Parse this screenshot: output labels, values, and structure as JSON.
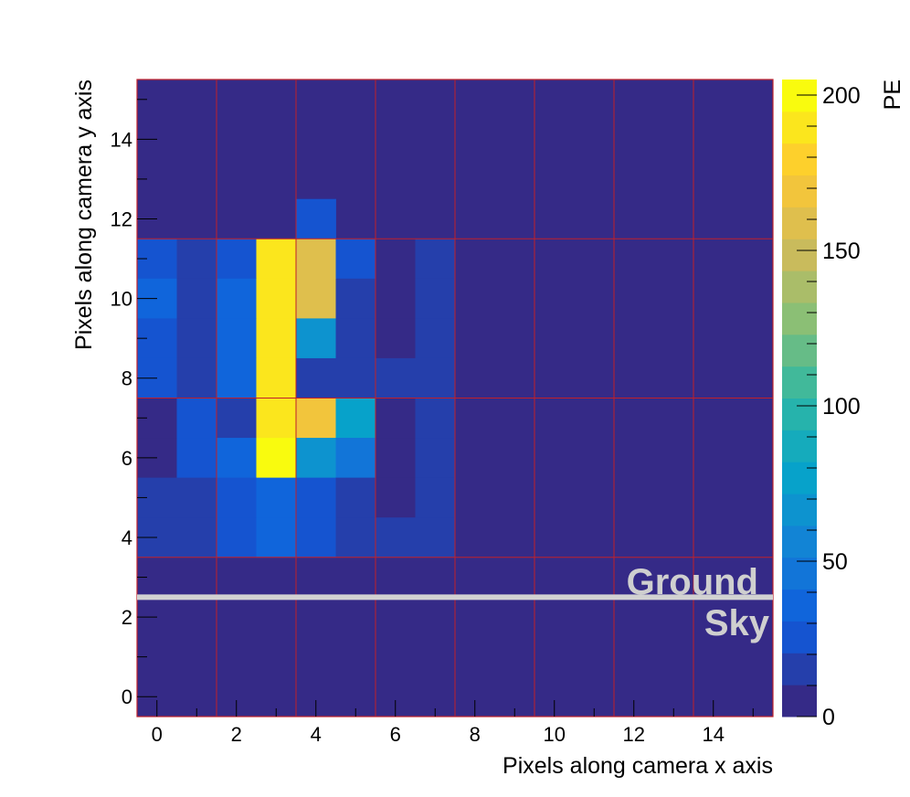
{
  "chart_data": {
    "type": "heatmap",
    "title": "",
    "xlabel": "Pixels along camera x axis",
    "ylabel": "Pixels along camera y axis",
    "colorbar_label": "PE",
    "xlim": [
      -0.5,
      15.5
    ],
    "ylim": [
      -0.5,
      15.5
    ],
    "x_ticks": [
      "0",
      "2",
      "4",
      "6",
      "8",
      "10",
      "12",
      "14"
    ],
    "y_ticks": [
      "0",
      "2",
      "4",
      "6",
      "8",
      "10",
      "12",
      "14"
    ],
    "colorbar_ticks": [
      "0",
      "50",
      "100",
      "150",
      "200"
    ],
    "zlim": [
      0,
      205
    ],
    "grid": "red module boundaries",
    "background_value": 0,
    "cells": [
      {
        "x": 4,
        "y": 12,
        "v": 25
      },
      {
        "x": 0,
        "y": 11,
        "v": 25
      },
      {
        "x": 1,
        "y": 11,
        "v": 12
      },
      {
        "x": 2,
        "y": 11,
        "v": 22
      },
      {
        "x": 3,
        "y": 11,
        "v": 190
      },
      {
        "x": 4,
        "y": 11,
        "v": 155
      },
      {
        "x": 5,
        "y": 11,
        "v": 25
      },
      {
        "x": 6,
        "y": 11,
        "v": 2
      },
      {
        "x": 7,
        "y": 11,
        "v": 15
      },
      {
        "x": 0,
        "y": 10,
        "v": 40
      },
      {
        "x": 1,
        "y": 10,
        "v": 12
      },
      {
        "x": 2,
        "y": 10,
        "v": 35
      },
      {
        "x": 3,
        "y": 10,
        "v": 190
      },
      {
        "x": 4,
        "y": 10,
        "v": 155
      },
      {
        "x": 5,
        "y": 10,
        "v": 15
      },
      {
        "x": 6,
        "y": 10,
        "v": 2
      },
      {
        "x": 7,
        "y": 10,
        "v": 15
      },
      {
        "x": 0,
        "y": 9,
        "v": 30
      },
      {
        "x": 1,
        "y": 9,
        "v": 12
      },
      {
        "x": 2,
        "y": 9,
        "v": 35
      },
      {
        "x": 3,
        "y": 9,
        "v": 190
      },
      {
        "x": 4,
        "y": 9,
        "v": 65
      },
      {
        "x": 5,
        "y": 9,
        "v": 15
      },
      {
        "x": 6,
        "y": 9,
        "v": 2
      },
      {
        "x": 7,
        "y": 9,
        "v": 15
      },
      {
        "x": 0,
        "y": 8,
        "v": 30
      },
      {
        "x": 1,
        "y": 8,
        "v": 12
      },
      {
        "x": 2,
        "y": 8,
        "v": 35
      },
      {
        "x": 3,
        "y": 8,
        "v": 190
      },
      {
        "x": 4,
        "y": 8,
        "v": 20
      },
      {
        "x": 5,
        "y": 8,
        "v": 15
      },
      {
        "x": 6,
        "y": 8,
        "v": 15
      },
      {
        "x": 7,
        "y": 8,
        "v": 15
      },
      {
        "x": 0,
        "y": 7,
        "v": 10
      },
      {
        "x": 1,
        "y": 7,
        "v": 25
      },
      {
        "x": 2,
        "y": 7,
        "v": 20
      },
      {
        "x": 3,
        "y": 7,
        "v": 185
      },
      {
        "x": 4,
        "y": 7,
        "v": 165
      },
      {
        "x": 5,
        "y": 7,
        "v": 80
      },
      {
        "x": 6,
        "y": 7,
        "v": 2
      },
      {
        "x": 7,
        "y": 7,
        "v": 15
      },
      {
        "x": 0,
        "y": 6,
        "v": 10
      },
      {
        "x": 1,
        "y": 6,
        "v": 25
      },
      {
        "x": 2,
        "y": 6,
        "v": 35
      },
      {
        "x": 3,
        "y": 6,
        "v": 205
      },
      {
        "x": 4,
        "y": 6,
        "v": 65
      },
      {
        "x": 5,
        "y": 6,
        "v": 50
      },
      {
        "x": 6,
        "y": 6,
        "v": 2
      },
      {
        "x": 7,
        "y": 6,
        "v": 15
      },
      {
        "x": 0,
        "y": 5,
        "v": 15
      },
      {
        "x": 1,
        "y": 5,
        "v": 15
      },
      {
        "x": 2,
        "y": 5,
        "v": 25
      },
      {
        "x": 3,
        "y": 5,
        "v": 35
      },
      {
        "x": 4,
        "y": 5,
        "v": 25
      },
      {
        "x": 5,
        "y": 5,
        "v": 15
      },
      {
        "x": 6,
        "y": 5,
        "v": 2
      },
      {
        "x": 7,
        "y": 5,
        "v": 15
      },
      {
        "x": 0,
        "y": 4,
        "v": 15
      },
      {
        "x": 1,
        "y": 4,
        "v": 15
      },
      {
        "x": 2,
        "y": 4,
        "v": 25
      },
      {
        "x": 3,
        "y": 4,
        "v": 35
      },
      {
        "x": 4,
        "y": 4,
        "v": 25
      },
      {
        "x": 5,
        "y": 4,
        "v": 15
      },
      {
        "x": 6,
        "y": 4,
        "v": 15
      },
      {
        "x": 7,
        "y": 4,
        "v": 15
      }
    ],
    "module_lines_x": [
      1.5,
      3.5,
      5.5,
      7.5,
      9.5,
      11.5,
      13.5
    ],
    "module_lines_y": [
      3.5,
      7.5,
      11.5
    ],
    "horizon_y": 2.5,
    "annotations": [
      "Ground",
      "Sky"
    ],
    "colors": {
      "grid_line": "#c0202a",
      "horizon_line": "#d2d2d2",
      "annotation_text": "#cfcfcf"
    }
  }
}
